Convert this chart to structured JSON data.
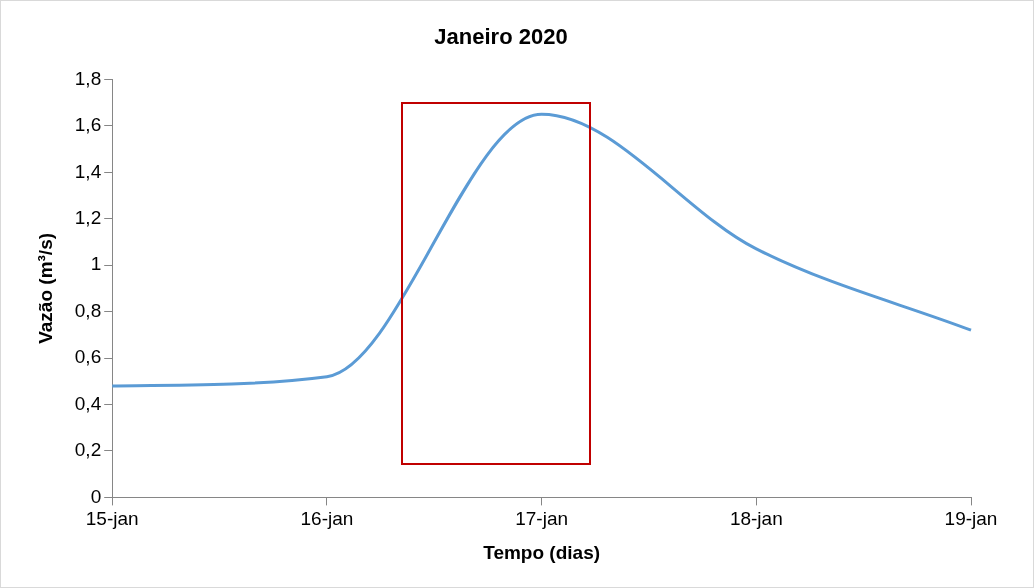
{
  "chart_data": {
    "type": "line",
    "title": "Janeiro 2020",
    "xlabel": "Tempo (dias)",
    "ylabel": "Vazão (m³/s)",
    "categories": [
      "15-jan",
      "16-jan",
      "17-jan",
      "18-jan",
      "19-jan"
    ],
    "series": [
      {
        "color": "#5b9bd5",
        "values": [
          0.48,
          0.52,
          1.65,
          1.07,
          0.72
        ]
      }
    ],
    "ylim": [
      0,
      1.8
    ],
    "yticks": [
      0,
      {
        "value": 0.2,
        "label": "0,2"
      },
      {
        "value": 0.4,
        "label": "0,4"
      },
      {
        "value": 0.6,
        "label": "0,6"
      },
      {
        "value": 0.8,
        "label": "0,8"
      },
      1,
      {
        "value": 1.2,
        "label": "1,2"
      },
      {
        "value": 1.4,
        "label": "1,4"
      },
      {
        "value": 1.6,
        "label": "1,6"
      },
      {
        "value": 1.8,
        "label": "1,8"
      }
    ],
    "grid": false,
    "legend": false,
    "marker": "none",
    "line_style": "solid"
  }
}
